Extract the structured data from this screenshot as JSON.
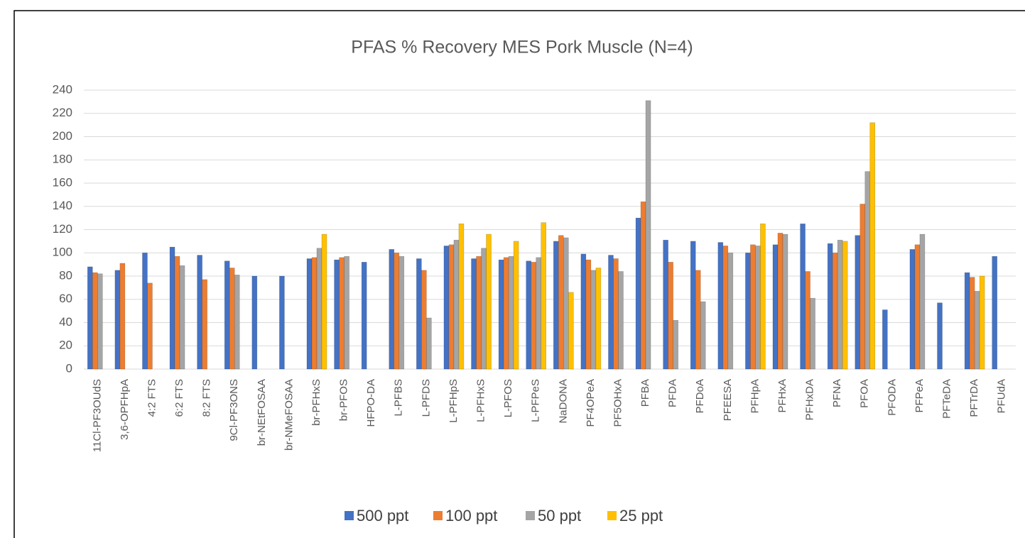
{
  "chart_data": {
    "type": "bar",
    "title": "PFAS % Recovery MES Pork Muscle (N=4)",
    "categories": [
      "11Cl-PF3OUdS",
      "3,6-OPFHpA",
      "4:2 FTS",
      "6:2 FTS",
      "8:2 FTS",
      "9Cl-PF3ONS",
      "br-NEtFOSAA",
      "br-NMeFOSAA",
      "br-PFHxS",
      "br-PFOS",
      "HFPO-DA",
      "L-PFBS",
      "L-PFDS",
      "L-PFHpS",
      "L-PFHxS",
      "L-PFOS",
      "L-PFPeS",
      "NaDONA",
      "PF4OPeA",
      "PF5OHxA",
      "PFBA",
      "PFDA",
      "PFDoA",
      "PFEESA",
      "PFHpA",
      "PFHxA",
      "PFHxDA",
      "PFNA",
      "PFOA",
      "PFODA",
      "PFPeA",
      "PFTeDA",
      "PFTrDA",
      "PFUdA"
    ],
    "series": [
      {
        "name": "500 ppt",
        "color": "#4472c4",
        "values": [
          88,
          85,
          100,
          105,
          98,
          93,
          80,
          80,
          95,
          94,
          92,
          103,
          95,
          106,
          95,
          94,
          93,
          110,
          99,
          98,
          130,
          111,
          110,
          109,
          100,
          107,
          125,
          108,
          115,
          51,
          103,
          57,
          83,
          97
        ]
      },
      {
        "name": "100 ppt",
        "color": "#ed7d31",
        "values": [
          83,
          91,
          74,
          97,
          77,
          87,
          0,
          0,
          96,
          96,
          0,
          100,
          85,
          107,
          97,
          96,
          92,
          115,
          94,
          95,
          144,
          92,
          85,
          106,
          107,
          117,
          84,
          100,
          142,
          0,
          107,
          0,
          79,
          0
        ]
      },
      {
        "name": "50 ppt",
        "color": "#a5a5a5",
        "values": [
          82,
          0,
          0,
          89,
          0,
          81,
          0,
          0,
          104,
          97,
          0,
          97,
          44,
          111,
          104,
          97,
          96,
          113,
          85,
          84,
          231,
          42,
          58,
          100,
          106,
          116,
          61,
          111,
          170,
          0,
          116,
          0,
          67,
          0
        ]
      },
      {
        "name": "25 ppt",
        "color": "#ffc000",
        "values": [
          0,
          0,
          0,
          0,
          0,
          0,
          0,
          0,
          116,
          0,
          0,
          0,
          0,
          125,
          116,
          110,
          126,
          66,
          87,
          0,
          0,
          0,
          0,
          0,
          125,
          0,
          0,
          110,
          212,
          0,
          0,
          0,
          80,
          0
        ]
      }
    ],
    "ylim": [
      0,
      240
    ],
    "yticks": [
      0,
      20,
      40,
      60,
      80,
      100,
      120,
      140,
      160,
      180,
      200,
      220,
      240
    ],
    "grid": true
  }
}
